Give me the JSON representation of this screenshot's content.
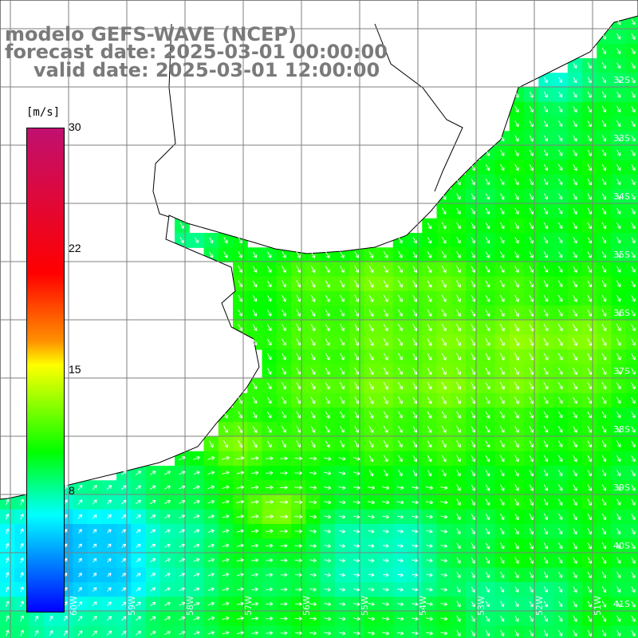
{
  "title": {
    "line1": "modelo GEFS-WAVE (NCEP)",
    "line2": "forecast date: 2025-03-01 00:00:00",
    "line3": "valid date: 2025-03-01 12:00:00"
  },
  "colorbar": {
    "unit": "[m/s]",
    "ticks": [
      "30",
      "22",
      "15",
      "8"
    ],
    "range": [
      0,
      30
    ],
    "colors": [
      "#0000ff",
      "#00ffff",
      "#00ff00",
      "#ffff00",
      "#ff9000",
      "#ff0000",
      "#c01070"
    ]
  },
  "map": {
    "lat_labels": [
      "32S",
      "33S",
      "34S",
      "35S",
      "36S",
      "37S",
      "38S",
      "39S",
      "40S",
      "41S"
    ],
    "lon_labels": [
      "60W",
      "59W",
      "58W",
      "57W",
      "56W",
      "55W",
      "54W",
      "53W",
      "52W",
      "51W"
    ],
    "land_color": "#ffffff",
    "coast_color": "#000000",
    "grid_color": "#7f7f7f",
    "arrow_color": "#ffffff",
    "arrow_direction": "from northwest (pointing south-east)"
  }
}
